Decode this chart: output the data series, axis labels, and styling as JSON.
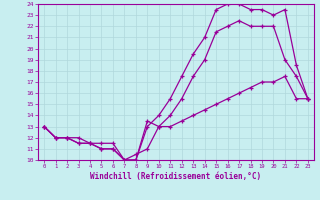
{
  "xlabel": "Windchill (Refroidissement éolien,°C)",
  "bg_color": "#c8eef0",
  "line_color": "#990099",
  "grid_color": "#b0d8dc",
  "xlim": [
    -0.5,
    23.5
  ],
  "ylim": [
    10,
    24
  ],
  "xticks": [
    0,
    1,
    2,
    3,
    4,
    5,
    6,
    7,
    8,
    9,
    10,
    11,
    12,
    13,
    14,
    15,
    16,
    17,
    18,
    19,
    20,
    21,
    22,
    23
  ],
  "yticks": [
    10,
    11,
    12,
    13,
    14,
    15,
    16,
    17,
    18,
    19,
    20,
    21,
    22,
    23,
    24
  ],
  "series": [
    {
      "x": [
        0,
        1,
        2,
        3,
        4,
        5,
        6,
        7,
        8,
        9,
        10,
        11,
        12,
        13,
        14,
        15,
        16,
        17,
        18,
        19,
        20,
        21,
        22,
        23
      ],
      "y": [
        13,
        12,
        12,
        12,
        11.5,
        11.5,
        11.5,
        10,
        10,
        13.5,
        13,
        13,
        13.5,
        14,
        14.5,
        15,
        15.5,
        16,
        16.5,
        17,
        17,
        17.5,
        15.5,
        15.5
      ]
    },
    {
      "x": [
        0,
        1,
        2,
        3,
        4,
        5,
        6,
        7,
        8,
        9,
        10,
        11,
        12,
        13,
        14,
        15,
        16,
        17,
        18,
        19,
        20,
        21,
        22,
        23
      ],
      "y": [
        13,
        12,
        12,
        11.5,
        11.5,
        11,
        11,
        10,
        10.5,
        11,
        13,
        14,
        15.5,
        17.5,
        19,
        21.5,
        22,
        22.5,
        22,
        22,
        22,
        19,
        17.5,
        15.5
      ]
    },
    {
      "x": [
        0,
        1,
        2,
        3,
        4,
        5,
        6,
        7,
        8,
        9,
        10,
        11,
        12,
        13,
        14,
        15,
        16,
        17,
        18,
        19,
        20,
        21,
        22,
        23
      ],
      "y": [
        13,
        12,
        12,
        11.5,
        11.5,
        11,
        11,
        10,
        10,
        13,
        14,
        15.5,
        17.5,
        19.5,
        21,
        23.5,
        24,
        24,
        23.5,
        23.5,
        23,
        23.5,
        18.5,
        15.5
      ]
    }
  ]
}
